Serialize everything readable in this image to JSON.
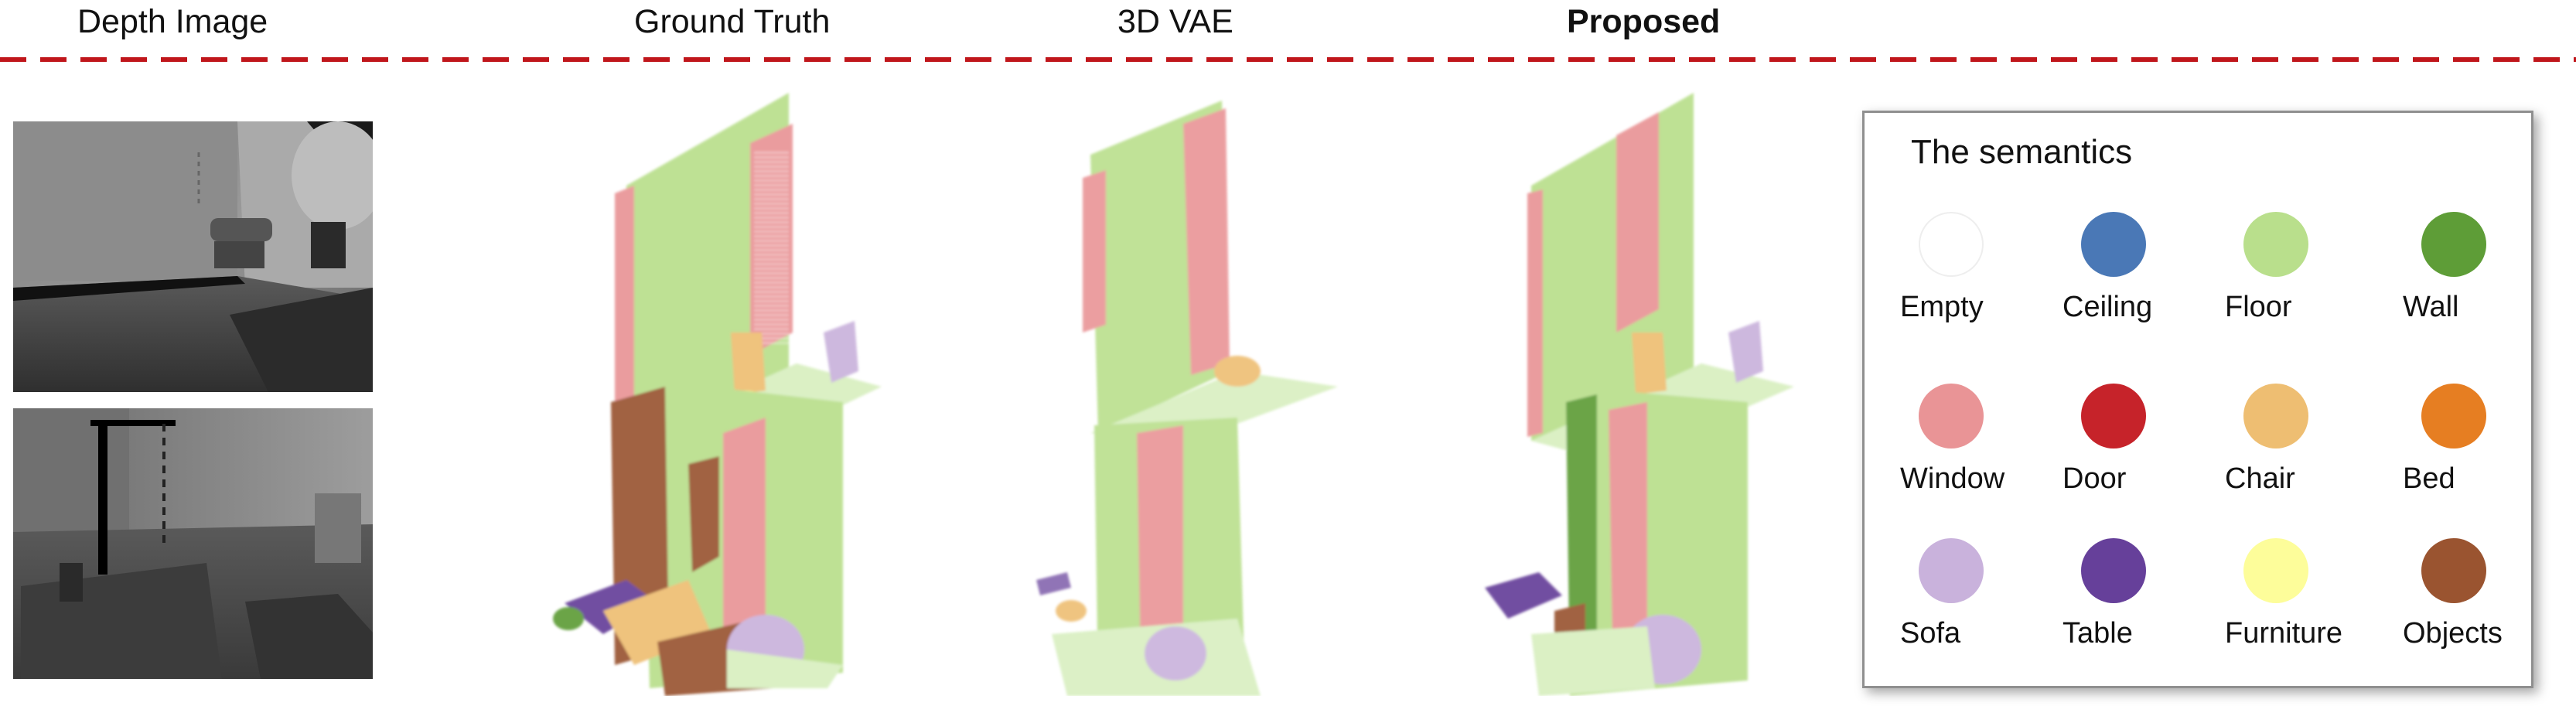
{
  "columns": {
    "depth": "Depth Image",
    "ground_truth": "Ground Truth",
    "vae": "3D VAE",
    "proposed": "Proposed"
  },
  "legend": {
    "title": "The semantics",
    "items": [
      {
        "label": "Empty",
        "color": "#ffffff"
      },
      {
        "label": "Ceiling",
        "color": "#4a78b6"
      },
      {
        "label": "Floor",
        "color": "#b9df8c"
      },
      {
        "label": "Wall",
        "color": "#5e9d37"
      },
      {
        "label": "Window",
        "color": "#e99496"
      },
      {
        "label": "Door",
        "color": "#c6232a"
      },
      {
        "label": "Chair",
        "color": "#eebe72"
      },
      {
        "label": "Bed",
        "color": "#e67e22"
      },
      {
        "label": "Sofa",
        "color": "#c9b2dc"
      },
      {
        "label": "Table",
        "color": "#66409a"
      },
      {
        "label": "Furniture",
        "color": "#fdfd9a"
      },
      {
        "label": "Objects",
        "color": "#9a5430"
      }
    ]
  }
}
